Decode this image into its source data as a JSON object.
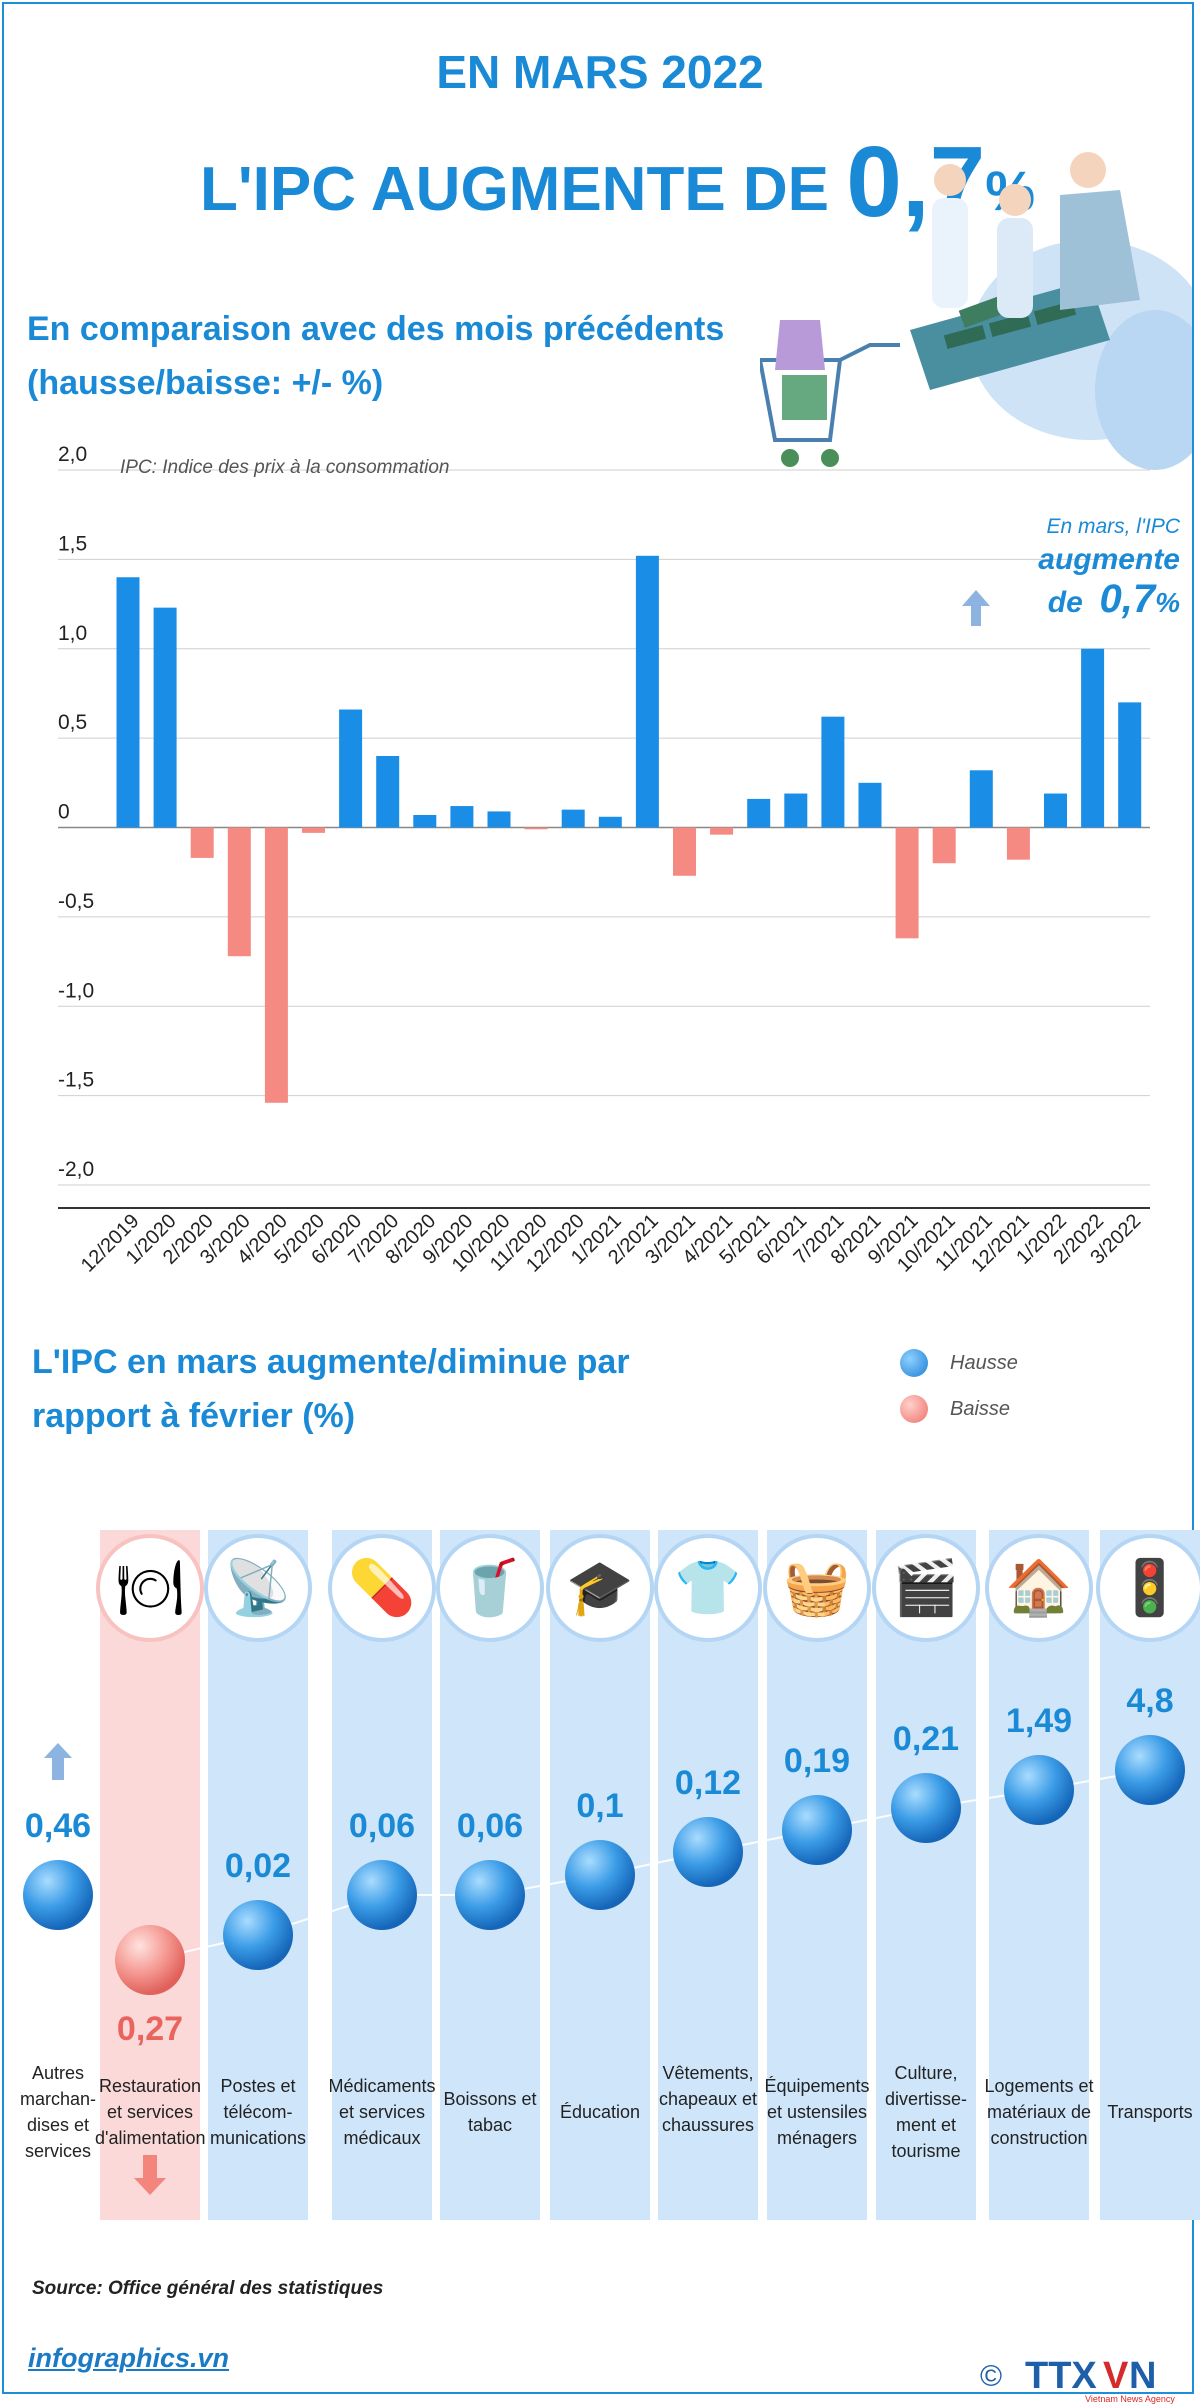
{
  "header": {
    "title": "EN MARS 2022",
    "headline_prefix": "L'IPC AUGMENTE DE",
    "headline_value": "0,7",
    "headline_unit": "%"
  },
  "section1": {
    "title_line1": "En comparaison avec des mois précédents",
    "title_line2": "(hausse/baisse: +/- %)"
  },
  "annotation": {
    "line1": "En mars, l'IPC",
    "line2": "augmente",
    "line3_prefix": "de",
    "value": "0,7",
    "unit": "%"
  },
  "section2": {
    "title_line1": "L'IPC en mars augmente/diminue par",
    "title_line2": "rapport à février (%)"
  },
  "legend": {
    "up": "Hausse",
    "down": "Baisse"
  },
  "colors": {
    "accent": "#1a8ad6",
    "up": "#1a8ee6",
    "down": "#f48a82",
    "column_up": "#cfe6fa",
    "column_down": "#fbd9d9"
  },
  "chart_data": [
    {
      "type": "bar",
      "title": "",
      "subtitle": "IPC: Indice des prix à la consommation",
      "xlabel": "",
      "ylabel": "",
      "ylim": [
        -2.0,
        2.0
      ],
      "yticks": [
        "2,0",
        "1,5",
        "1,0",
        "0,5",
        "0",
        "-0,5",
        "-1,0",
        "-1,5",
        "-2,0"
      ],
      "grid": true,
      "categories": [
        "12/2019",
        "1/2020",
        "2/2020",
        "3/2020",
        "4/2020",
        "5/2020",
        "6/2020",
        "7/2020",
        "8/2020",
        "9/2020",
        "10/2020",
        "11/2020",
        "12/2020",
        "1/2021",
        "2/2021",
        "3/2021",
        "4/2021",
        "5/2021",
        "6/2021",
        "7/2021",
        "8/2021",
        "9/2021",
        "10/2021",
        "11/2021",
        "12/2021",
        "1/2022",
        "2/2022",
        "3/2022"
      ],
      "values": [
        1.4,
        1.23,
        -0.17,
        -0.72,
        -1.54,
        -0.03,
        0.66,
        0.4,
        0.07,
        0.12,
        0.09,
        -0.01,
        0.1,
        0.06,
        1.52,
        -0.27,
        -0.04,
        0.16,
        0.19,
        0.62,
        0.25,
        -0.62,
        -0.2,
        0.32,
        -0.18,
        0.19,
        1.0,
        0.7
      ]
    },
    {
      "type": "scatter",
      "title": "",
      "categories": [
        "Autres marchan-dises et services",
        "Restauration et services d'alimentation",
        "Postes et télécom-munications",
        "Médicaments et services médicaux",
        "Boissons et tabac",
        "Éducation",
        "Vêtements, chapeaux et chaussures",
        "Équipements et ustensiles ménagers",
        "Culture, divertisse-ment et tourisme",
        "Logements et matériaux de construction",
        "Transports"
      ],
      "values": [
        0.46,
        -0.27,
        0.02,
        0.06,
        0.06,
        0.1,
        0.12,
        0.19,
        0.21,
        1.49,
        4.8
      ],
      "labels": [
        "0,46",
        "0,27",
        "0,02",
        "0,06",
        "0,06",
        "0,1",
        "0,12",
        "0,19",
        "0,21",
        "1,49",
        "4,8"
      ],
      "direction": [
        "up",
        "down",
        "up",
        "up",
        "up",
        "up",
        "up",
        "up",
        "up",
        "up",
        "up"
      ],
      "icons": [
        "none",
        "food-plate-icon",
        "antenna-tower-icon",
        "medicine-pills-icon",
        "drinks-cigarettes-icon",
        "graduation-cap-icon",
        "clothes-shoes-icon",
        "washing-machine-icon",
        "film-clapper-icon",
        "house-icon",
        "traffic-light-icon"
      ]
    }
  ],
  "source": "Source: Office général des statistiques",
  "footer": {
    "site": "infographics.vn",
    "copyright": "©",
    "logo_text": "TTXVN",
    "logo_subtext": "Vietnam News Agency"
  }
}
